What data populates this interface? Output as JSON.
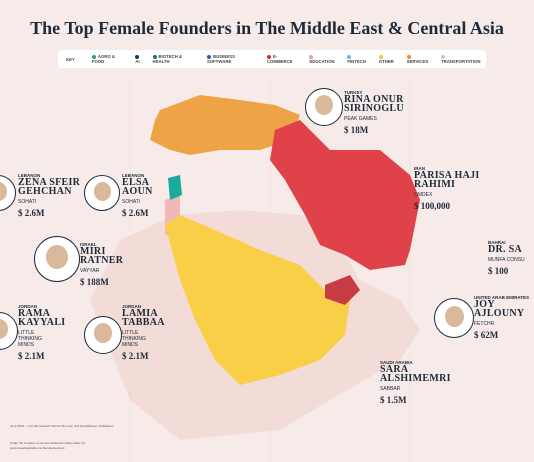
{
  "title": "The Top Female Founders in The Middle East & Central Asia",
  "legend": {
    "label": "KEY",
    "items": [
      "AGRO & FOOD",
      "AI",
      "BIOTECH & HEALTH",
      "BUSINESS SOFTWARE",
      "E-COMMERCE",
      "EDUCATION",
      "FINTECH",
      "OTHER",
      "SERVICES",
      "TRANSPORTATION"
    ]
  },
  "founders": [
    {
      "country": "TURKEY",
      "name": [
        "RINA ONUR",
        "SIRINOGLU"
      ],
      "company": "PEAK GAMES",
      "funding": "$ 18M"
    },
    {
      "country": "IRAN",
      "name": [
        "PARISA HAJI",
        "RAHIMI"
      ],
      "company": "OMDEX",
      "funding": "$ 100,000"
    },
    {
      "country": "BAHRAI",
      "name": [
        "DR. SA"
      ],
      "company": "MUNFA CONSU",
      "funding": "$ 100"
    },
    {
      "country": "LEBANON",
      "name": [
        "ZENA SFEIR",
        "GEHCHAN"
      ],
      "company": "SOHATI",
      "funding": "$ 2.6M"
    },
    {
      "country": "LEBANON",
      "name": [
        "ELSA",
        "AOUN"
      ],
      "company": "SOHATI",
      "funding": "$ 2.6M"
    },
    {
      "country": "ISRAEL",
      "name": [
        "MIRI",
        "RATNER"
      ],
      "company": "VAYYAR",
      "funding": "$ 188M"
    },
    {
      "country": "JORDAN",
      "name": [
        "RAMA",
        "KAYYALI"
      ],
      "company": "LITTLE THINKING MINDS",
      "funding": "$ 2.1M"
    },
    {
      "country": "JORDAN",
      "name": [
        "LAMIA",
        "TABBAA"
      ],
      "company": "LITTLE THINKING MINDS",
      "funding": "$ 2.1M"
    },
    {
      "country": "UNITED ARAB EMIRATES",
      "name": [
        "JOY",
        "AJLOUNY"
      ],
      "company": "FETCHR",
      "funding": "$ 62M"
    },
    {
      "country": "SAUDI ARABIA",
      "name": [
        "SARA",
        "ALSHIMEMRI"
      ],
      "company": "SABBAR",
      "funding": "$ 1.5M"
    }
  ],
  "footer": [
    "June 2023 — For full research behind this map, visit bit.ly/Women-Trailblazers",
    "Under the Creative Commons Attribution-Share Alike 4.0",
    "www.visualcapitalist.com/femalefounders"
  ]
}
